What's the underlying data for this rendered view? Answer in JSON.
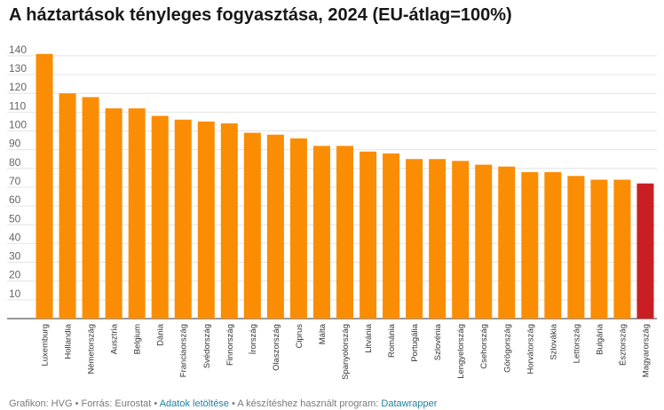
{
  "title": "A háztartások tényleges fogyasztása, 2024 (EU-átlag=100%)",
  "colors": {
    "bar": "#fa8d03",
    "highlight": "#c91f24",
    "grid": "#e4e4e4",
    "axis": "#333333",
    "tick_text": "#656565",
    "link": "#1d81a2"
  },
  "footer": {
    "credit": "Grafikon: HVG",
    "sep1": " • ",
    "source": "Forrás: Eurostat",
    "sep2": " • ",
    "download_link": "Adatok letöltése",
    "sep3": " • ",
    "tool_text": "A készítéshez használt program: ",
    "tool_link": "Datawrapper"
  },
  "chart_data": {
    "type": "bar",
    "title": "A háztartások tényleges fogyasztása, 2024 (EU-átlag=100%)",
    "xlabel": "",
    "ylabel": "",
    "ylim": [
      0,
      145
    ],
    "yticks": [
      10,
      20,
      30,
      40,
      50,
      60,
      70,
      80,
      90,
      100,
      110,
      120,
      130,
      140
    ],
    "grid": true,
    "categories": [
      "Luxemburg",
      "Hollandia",
      "Németország",
      "Ausztria",
      "Belgium",
      "Dánia",
      "Franciaország",
      "Svédország",
      "Finnország",
      "Írország",
      "Olaszország",
      "Ciprus",
      "Málta",
      "Spanyolország",
      "Litvánia",
      "Románia",
      "Portugália",
      "Szlovénia",
      "Lengyelország",
      "Csehország",
      "Görögország",
      "Horvátország",
      "Szlovákia",
      "Lettország",
      "Bulgária",
      "Észtország",
      "Magyarország"
    ],
    "values": [
      141,
      120,
      118,
      112,
      112,
      108,
      106,
      105,
      104,
      99,
      98,
      96,
      92,
      92,
      89,
      88,
      85,
      85,
      84,
      82,
      81,
      78,
      78,
      76,
      74,
      74,
      72
    ],
    "highlight_category": "Magyarország"
  }
}
